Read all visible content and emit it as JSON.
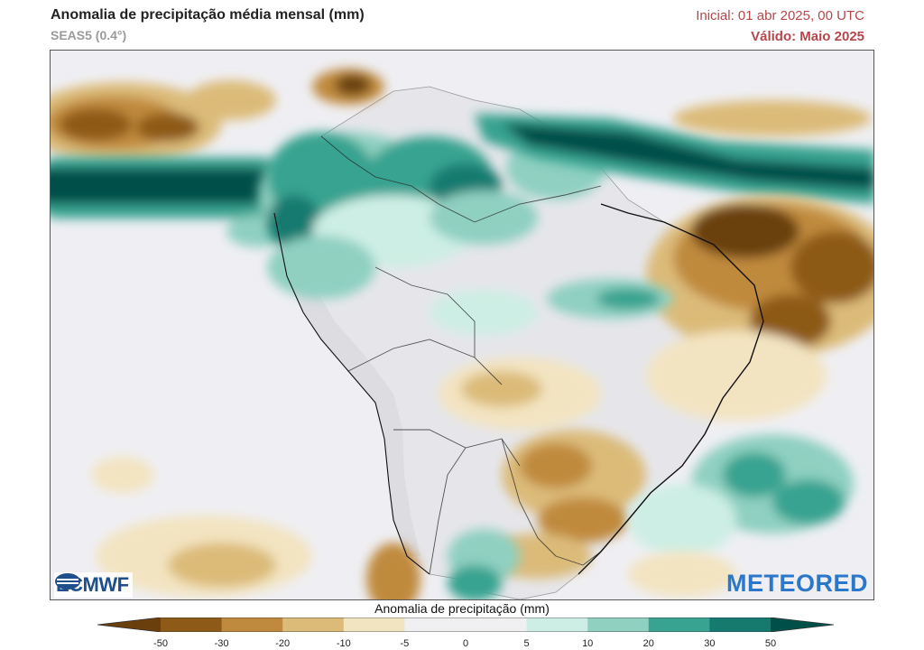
{
  "header": {
    "title": "Anomalia de precipitação média mensal (mm)",
    "subtitle": "SEAS5 (0.4°)",
    "initial": "Inicial: 01 abr 2025, 00 UTC",
    "valid": "Válido: Maio 2025"
  },
  "logos": {
    "left": "ECMWF",
    "right": "METEORED"
  },
  "colorbar": {
    "title": "Anomalia de precipitação (mm)",
    "ticks": [
      "-50",
      "-30",
      "-20",
      "-10",
      "-5",
      "0",
      "5",
      "10",
      "20",
      "30",
      "50"
    ],
    "colors": [
      "#6b3f0b",
      "#8d5a17",
      "#c08a3e",
      "#dcbb79",
      "#f3e4c1",
      "#f0f0f3",
      "#f0f0f3",
      "#cdeee4",
      "#8fd0c1",
      "#38a390",
      "#167a6f",
      "#004f48"
    ]
  }
}
